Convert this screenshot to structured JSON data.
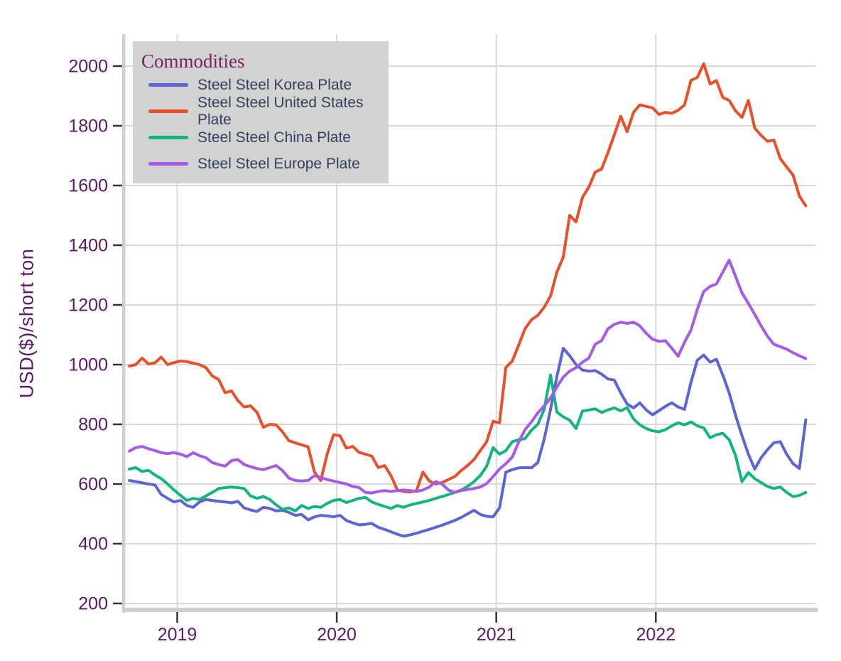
{
  "chart_data": {
    "type": "line",
    "legend_title": "Commodities",
    "ylabel": "USD($)/short ton",
    "grid": true,
    "legend_position": "top-left",
    "yaxis": {
      "ticks": [
        200,
        400,
        600,
        800,
        1000,
        1200,
        1400,
        1600,
        1800,
        2000
      ],
      "range": [
        150,
        2110
      ]
    },
    "xaxis": {
      "ticks": [
        2019,
        2020,
        2021,
        2022
      ],
      "range": [
        2018.68,
        2023.02
      ]
    },
    "x": {
      "start_year": 2018.7,
      "step_years": 0.04,
      "count": 107
    },
    "series": [
      {
        "name": "Steel Steel Korea Plate",
        "color": "#5c64d6",
        "values": [
          612,
          608,
          604,
          600,
          597,
          565,
          552,
          540,
          545,
          528,
          522,
          540,
          548,
          545,
          542,
          540,
          537,
          542,
          520,
          513,
          508,
          522,
          518,
          510,
          512,
          505,
          495,
          498,
          480,
          490,
          495,
          493,
          490,
          495,
          478,
          470,
          463,
          465,
          468,
          455,
          448,
          440,
          432,
          425,
          430,
          435,
          442,
          448,
          455,
          462,
          470,
          478,
          488,
          500,
          512,
          498,
          492,
          490,
          520,
          640,
          648,
          654,
          655,
          654,
          672,
          750,
          850,
          960,
          1055,
          1030,
          1000,
          982,
          978,
          980,
          968,
          952,
          948,
          905,
          868,
          855,
          872,
          848,
          832,
          846,
          860,
          872,
          858,
          850,
          940,
          1015,
          1032,
          1008,
          1018,
          965,
          905,
          830,
          762,
          700,
          650,
          688,
          715,
          738,
          742,
          700,
          668,
          652,
          815
        ]
      },
      {
        "name": "Steel Steel United States Plate",
        "color": "#e8502c",
        "values": [
          995,
          1000,
          1022,
          1002,
          1006,
          1025,
          1000,
          1007,
          1012,
          1010,
          1005,
          1000,
          990,
          962,
          950,
          906,
          912,
          880,
          858,
          862,
          840,
          790,
          800,
          798,
          775,
          745,
          738,
          731,
          725,
          640,
          612,
          700,
          765,
          762,
          720,
          726,
          706,
          700,
          693,
          655,
          662,
          628,
          580,
          575,
          573,
          578,
          640,
          610,
          600,
          605,
          615,
          625,
          645,
          662,
          682,
          712,
          742,
          810,
          805,
          990,
          1012,
          1065,
          1120,
          1150,
          1165,
          1192,
          1230,
          1310,
          1360,
          1500,
          1478,
          1560,
          1595,
          1645,
          1655,
          1710,
          1770,
          1832,
          1780,
          1845,
          1870,
          1865,
          1860,
          1838,
          1845,
          1842,
          1852,
          1870,
          1952,
          1962,
          2008,
          1940,
          1952,
          1895,
          1885,
          1850,
          1828,
          1885,
          1792,
          1768,
          1748,
          1752,
          1690,
          1662,
          1635,
          1565,
          1532
        ]
      },
      {
        "name": "Steel Steel China Plate",
        "color": "#12b581",
        "values": [
          650,
          655,
          642,
          646,
          630,
          618,
          600,
          580,
          562,
          545,
          552,
          548,
          560,
          572,
          585,
          588,
          590,
          588,
          585,
          560,
          552,
          558,
          548,
          530,
          515,
          520,
          510,
          528,
          518,
          525,
          522,
          535,
          545,
          548,
          538,
          545,
          552,
          555,
          540,
          532,
          525,
          518,
          528,
          522,
          530,
          535,
          540,
          545,
          552,
          558,
          565,
          572,
          580,
          592,
          608,
          628,
          660,
          722,
          700,
          712,
          742,
          748,
          752,
          780,
          800,
          850,
          965,
          841,
          825,
          814,
          786,
          844,
          848,
          852,
          840,
          848,
          855,
          845,
          856,
          818,
          798,
          786,
          778,
          775,
          782,
          795,
          805,
          798,
          808,
          795,
          788,
          755,
          765,
          770,
          748,
          695,
          608,
          638,
          618,
          605,
          592,
          585,
          590,
          572,
          558,
          562,
          572
        ]
      },
      {
        "name": "Steel Steel Europe Plate",
        "color": "#a45be6",
        "values": [
          710,
          722,
          726,
          718,
          712,
          705,
          702,
          705,
          700,
          692,
          705,
          695,
          688,
          672,
          665,
          660,
          678,
          682,
          665,
          658,
          652,
          648,
          655,
          662,
          645,
          620,
          612,
          610,
          612,
          628,
          622,
          615,
          610,
          605,
          600,
          592,
          588,
          572,
          570,
          575,
          578,
          575,
          578,
          580,
          578,
          575,
          580,
          590,
          608,
          600,
          580,
          572,
          578,
          582,
          585,
          590,
          602,
          625,
          650,
          668,
          690,
          740,
          782,
          808,
          838,
          862,
          888,
          925,
          958,
          978,
          990,
          1008,
          1022,
          1068,
          1080,
          1120,
          1135,
          1142,
          1138,
          1142,
          1130,
          1105,
          1085,
          1078,
          1080,
          1055,
          1028,
          1075,
          1115,
          1185,
          1245,
          1262,
          1270,
          1310,
          1350,
          1295,
          1240,
          1205,
          1168,
          1130,
          1095,
          1068,
          1060,
          1052,
          1040,
          1030,
          1020
        ]
      }
    ]
  },
  "colors": {
    "background": "#ffffff",
    "grid": "#d9d9d9",
    "axis_line": "#cfcfcf",
    "tick_mark": "#333333",
    "axis_text": "#5e1a68",
    "legend_bg": "#d2d2d2",
    "legend_title_text": "#7a2262",
    "legend_item_text": "#33415c"
  }
}
